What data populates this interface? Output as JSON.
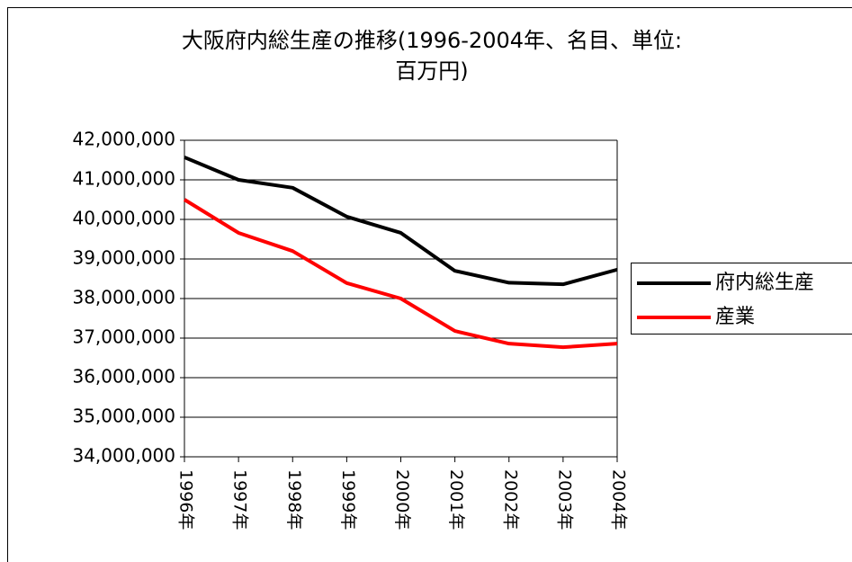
{
  "chart_data": {
    "type": "line",
    "title": "大阪府内総生産の推移(1996-2004年、名目、単位:百万円)",
    "categories": [
      "1996年",
      "1997年",
      "1998年",
      "1999年",
      "2000年",
      "2001年",
      "2002年",
      "2003年",
      "2004年"
    ],
    "series": [
      {
        "name": "府内総生産",
        "color": "#000000",
        "values": [
          41570000,
          41000000,
          40800000,
          40070000,
          39660000,
          38700000,
          38400000,
          38360000,
          38730000
        ]
      },
      {
        "name": "産業",
        "color": "#ff0000",
        "values": [
          40500000,
          39660000,
          39200000,
          38390000,
          38000000,
          37180000,
          36860000,
          36770000,
          36860000
        ]
      }
    ],
    "ylim": [
      34000000,
      42000000
    ],
    "yticks": [
      {
        "value": 34000000,
        "label": "34,000,000"
      },
      {
        "value": 35000000,
        "label": "35,000,000"
      },
      {
        "value": 36000000,
        "label": "36,000,000"
      },
      {
        "value": 37000000,
        "label": "37,000,000"
      },
      {
        "value": 38000000,
        "label": "38,000,000"
      },
      {
        "value": 39000000,
        "label": "39,000,000"
      },
      {
        "value": 40000000,
        "label": "40,000,000"
      },
      {
        "value": 41000000,
        "label": "41,000,000"
      },
      {
        "value": 42000000,
        "label": "42,000,000"
      }
    ],
    "grid": true,
    "legend": "right"
  }
}
